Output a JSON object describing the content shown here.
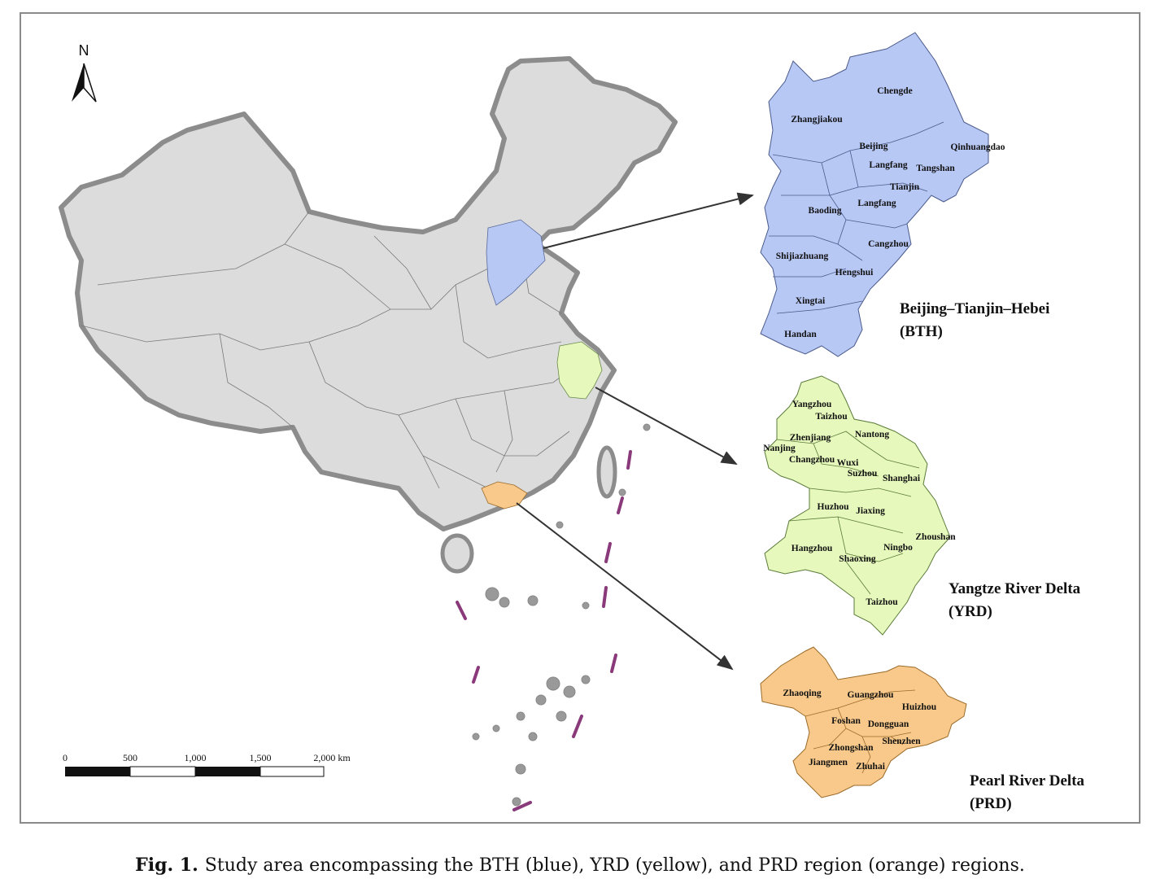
{
  "north_arrow": {
    "label": "N",
    "icon": "north-arrow-icon"
  },
  "scale_bar": {
    "ticks": [
      "0",
      "500",
      "1,000",
      "1,500",
      "2,000 km"
    ]
  },
  "colors": {
    "bth": "#b8c8f5",
    "yrd": "#e6f8bc",
    "prd": "#f8c98a",
    "china": "#dcdcdc",
    "border": "#8c8c8c",
    "nine_dash": "#8a3a7a"
  },
  "regions": [
    {
      "title_line1": "Beijing–Tianjin–Hebei",
      "title_line2": "(BTH)",
      "cities": [
        "Chengde",
        "Zhangjiakou",
        "Beijing",
        "Qinhuangdao",
        "Langfang",
        "Tangshan",
        "Tianjin",
        "Langfang",
        "Baoding",
        "Cangzhou",
        "Shijiazhuang",
        "Hengshui",
        "Xingtai",
        "Handan"
      ]
    },
    {
      "title_line1": "Yangtze River Delta",
      "title_line2": "(YRD)",
      "cities": [
        "Yangzhou",
        "Taizhou",
        "Nantong",
        "Zhenjiang",
        "Nanjing",
        "Changzhou",
        "Wuxi",
        "Suzhou",
        "Shanghai",
        "Huzhou",
        "Jiaxing",
        "Zhoushan",
        "Ningbo",
        "Hangzhou",
        "Shaoxing",
        "Taizhou"
      ]
    },
    {
      "title_line1": "Pearl River Delta",
      "title_line2": "(PRD)",
      "cities": [
        "Zhaoqing",
        "Guangzhou",
        "Huizhou",
        "Foshan",
        "Dongguan",
        "Shenzhen",
        "Zhongshan",
        "Jiangmen",
        "Zhuhai"
      ]
    }
  ],
  "caption": {
    "label": "Fig. 1.",
    "text": "Study area encompassing the BTH (blue), YRD (yellow), and PRD region (orange) regions."
  }
}
